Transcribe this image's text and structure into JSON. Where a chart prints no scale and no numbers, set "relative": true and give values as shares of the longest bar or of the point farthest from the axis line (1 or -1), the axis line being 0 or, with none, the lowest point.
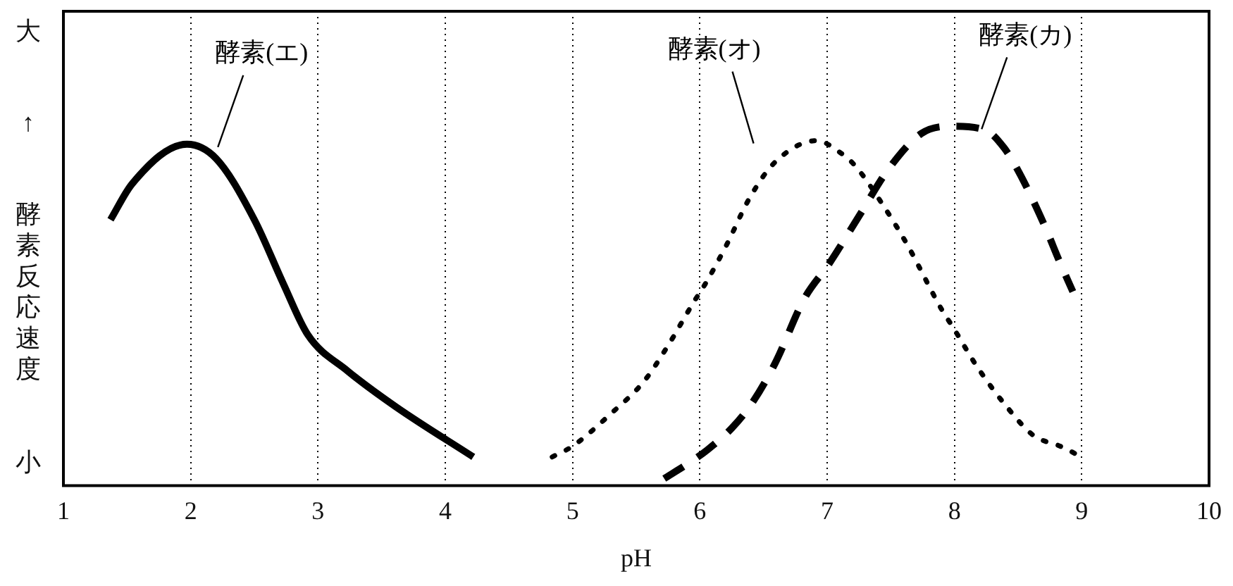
{
  "chart_data": {
    "type": "line",
    "xlabel": "pH",
    "ylabel": "酵素反応速度",
    "annotations": [
      "大",
      "↑",
      "小"
    ],
    "relative": true,
    "xlim": [
      1,
      10
    ],
    "xticks": [
      1,
      2,
      3,
      4,
      5,
      6,
      7,
      8,
      9,
      10
    ],
    "grid": "x",
    "legend": false,
    "marker": "none",
    "series": [
      {
        "name": "酵素(エ)",
        "color": "#000000",
        "line_style": "solid",
        "x": [
          1.37,
          1.54,
          1.97,
          2.2,
          2.5,
          2.73,
          2.92,
          3.23,
          3.61,
          4.22
        ],
        "values": [
          0.74,
          0.84,
          0.95,
          0.91,
          0.74,
          0.56,
          0.42,
          0.32,
          0.22,
          0.08
        ]
      },
      {
        "name": "酵素(オ)",
        "color": "#000000",
        "line_style": "dotted",
        "x": [
          4.84,
          5.0,
          5.3,
          5.56,
          5.75,
          5.95,
          6.04,
          6.21,
          6.39,
          6.59,
          6.92,
          7.09,
          7.22,
          7.44,
          7.63,
          7.9,
          7.99,
          8.18,
          8.41,
          8.62,
          8.83,
          9.0
        ],
        "values": [
          0.08,
          0.11,
          0.2,
          0.29,
          0.39,
          0.51,
          0.56,
          0.67,
          0.8,
          0.9,
          0.96,
          0.93,
          0.89,
          0.78,
          0.67,
          0.49,
          0.44,
          0.33,
          0.22,
          0.14,
          0.11,
          0.08
        ]
      },
      {
        "name": "酵素(カ)",
        "color": "#000000",
        "line_style": "dashed",
        "x": [
          5.72,
          5.9,
          6.06,
          6.25,
          6.41,
          6.59,
          6.82,
          7.02,
          7.25,
          7.48,
          7.74,
          7.97,
          8.24,
          8.39,
          8.51,
          8.7,
          8.83,
          8.93
        ],
        "values": [
          0.02,
          0.06,
          0.1,
          0.16,
          0.23,
          0.34,
          0.52,
          0.62,
          0.75,
          0.88,
          0.98,
          1,
          0.99,
          0.94,
          0.87,
          0.73,
          0.62,
          0.54
        ]
      }
    ]
  }
}
